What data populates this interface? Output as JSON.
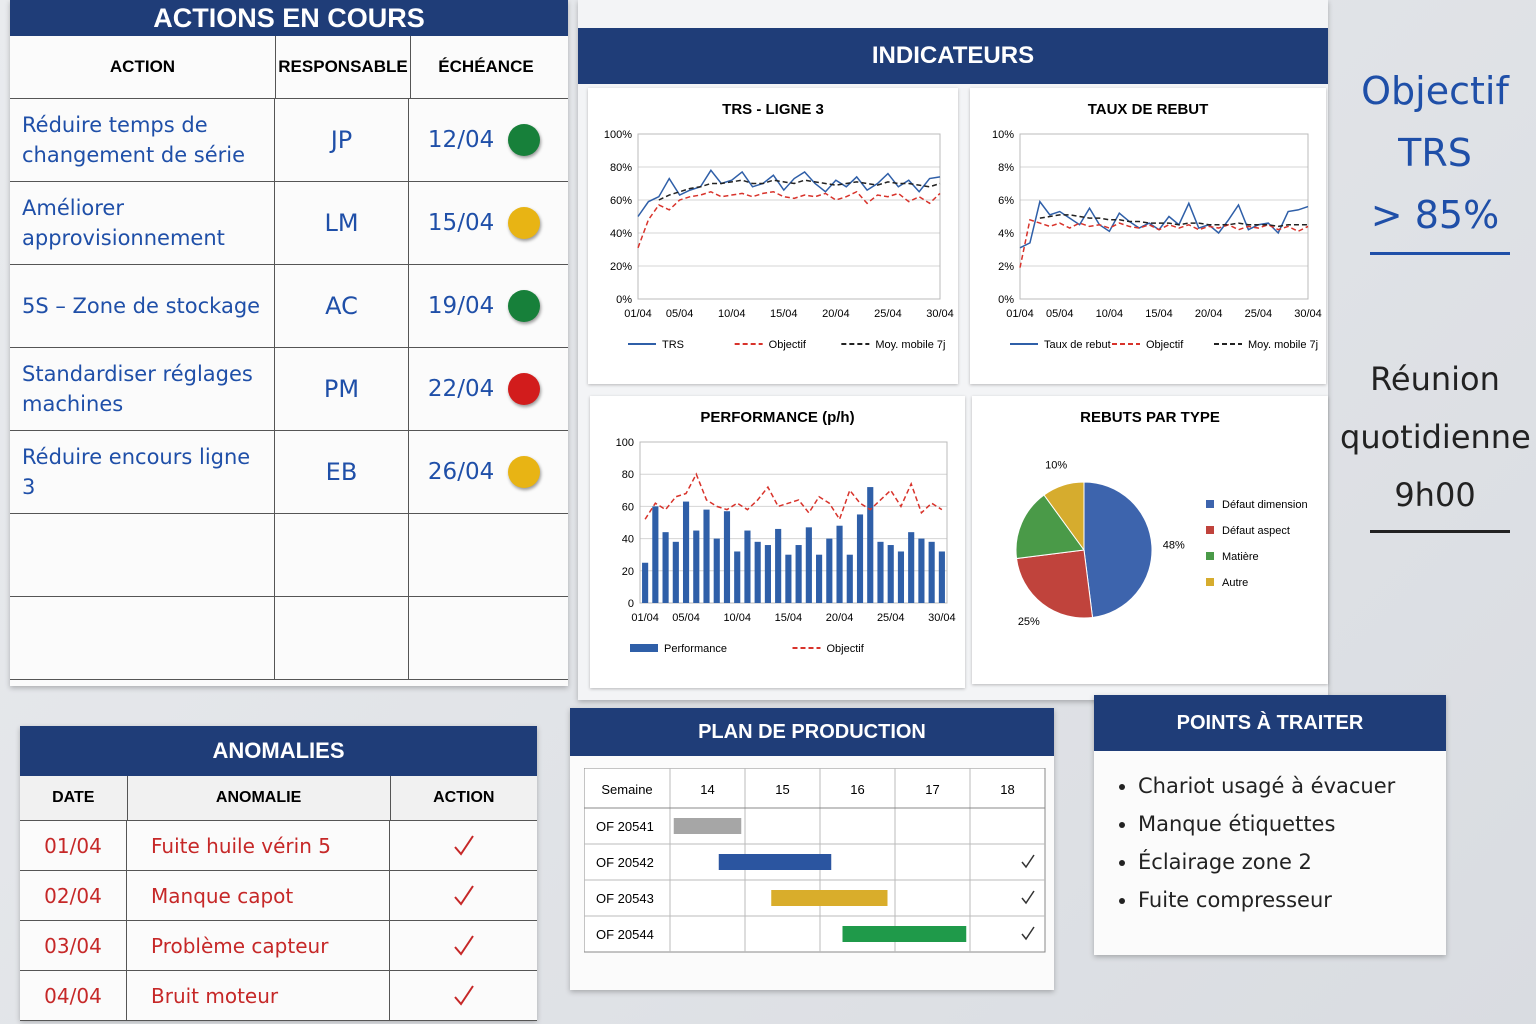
{
  "actions": {
    "title": "ACTIONS EN COURS",
    "headers": [
      "ACTION",
      "RESPONSABLE",
      "ÉCHÉANCE"
    ],
    "rows": [
      {
        "action": "Réduire temps de changement de série",
        "owner": "JP",
        "due": "12/04",
        "status": "#17803a"
      },
      {
        "action": "Améliorer approvisionnement",
        "owner": "LM",
        "due": "15/04",
        "status": "#e8b414"
      },
      {
        "action": "5S – Zone de stockage",
        "owner": "AC",
        "due": "19/04",
        "status": "#17803a"
      },
      {
        "action": "Standardiser réglages machines",
        "owner": "PM",
        "due": "22/04",
        "status": "#d21c1c"
      },
      {
        "action": "Réduire encours ligne 3",
        "owner": "EB",
        "due": "26/04",
        "status": "#e8b414"
      }
    ]
  },
  "indicators": {
    "title": "INDICATEURS"
  },
  "chart_data": [
    {
      "type": "line",
      "title": "TRS - LIGNE 3",
      "categories": [
        "01/04",
        null,
        null,
        null,
        "05/04",
        null,
        null,
        null,
        null,
        "10/04",
        null,
        null,
        null,
        null,
        "15/04",
        null,
        null,
        null,
        null,
        "20/04",
        null,
        null,
        null,
        null,
        "25/04",
        null,
        null,
        null,
        null,
        "30/04"
      ],
      "ylim": [
        0,
        100
      ],
      "yticks": [
        {
          "value": 0,
          "label": "0%"
        },
        {
          "value": 20,
          "label": "20%"
        },
        {
          "value": 40,
          "label": "40%"
        },
        {
          "value": 60,
          "label": "60%"
        },
        {
          "value": 80,
          "label": "80%"
        },
        {
          "value": 100,
          "label": "100%"
        }
      ],
      "grid": true,
      "series": [
        {
          "name": "TRS",
          "color": "#2f5fa8",
          "dash": false,
          "values": [
            50,
            59,
            62,
            73,
            63,
            66,
            68,
            78,
            70,
            72,
            77,
            68,
            70,
            75,
            66,
            73,
            77,
            70,
            65,
            72,
            68,
            74,
            66,
            70,
            76,
            68,
            72,
            65,
            73,
            74
          ]
        },
        {
          "name": "Objectif",
          "color": "#d8332b",
          "dash": true,
          "values": [
            31,
            48,
            57,
            54,
            60,
            62,
            63,
            65,
            62,
            63,
            64,
            62,
            64,
            65,
            62,
            61,
            63,
            62,
            64,
            60,
            62,
            65,
            58,
            63,
            62,
            64,
            59,
            62,
            58,
            64
          ]
        },
        {
          "name": "Moy. mobile 7j",
          "color": "#222222",
          "dash": true,
          "values": [
            null,
            null,
            60,
            63,
            65,
            67,
            68,
            70,
            70,
            71,
            72,
            70,
            70,
            72,
            71,
            70,
            72,
            71,
            70,
            69,
            70,
            71,
            70,
            69,
            71,
            70,
            70,
            69,
            68,
            70
          ]
        }
      ]
    },
    {
      "type": "line",
      "title": "TAUX DE REBUT",
      "categories": [
        "01/04",
        null,
        null,
        null,
        "05/04",
        null,
        null,
        null,
        null,
        "10/04",
        null,
        null,
        null,
        null,
        "15/04",
        null,
        null,
        null,
        null,
        "20/04",
        null,
        null,
        null,
        null,
        "25/04",
        null,
        null,
        null,
        null,
        "30/04"
      ],
      "ylim": [
        0,
        10
      ],
      "yticks": [
        {
          "value": 0,
          "label": "0%"
        },
        {
          "value": 2,
          "label": "2%"
        },
        {
          "value": 4,
          "label": "4%"
        },
        {
          "value": 6,
          "label": "6%"
        },
        {
          "value": 8,
          "label": "8%"
        },
        {
          "value": 10,
          "label": "10%"
        }
      ],
      "grid": true,
      "series": [
        {
          "name": "Taux de rebut",
          "color": "#2f5fa8",
          "dash": false,
          "values": [
            3.1,
            3.4,
            5.9,
            5.1,
            5.3,
            4.9,
            4.5,
            5.5,
            4.5,
            4.1,
            5.2,
            4.7,
            4.3,
            4.6,
            4.2,
            5.0,
            4.5,
            5.8,
            4.3,
            4.5,
            4.0,
            4.8,
            5.7,
            4.2,
            4.5,
            4.6,
            4.0,
            5.3,
            5.4,
            5.6
          ]
        },
        {
          "name": "Objectif",
          "color": "#d8332b",
          "dash": true,
          "values": [
            1.9,
            4.8,
            4.6,
            4.4,
            4.6,
            4.3,
            4.6,
            4.4,
            4.5,
            4.3,
            4.6,
            4.4,
            4.3,
            4.5,
            4.2,
            4.5,
            4.3,
            4.5,
            4.2,
            4.4,
            4.3,
            4.5,
            4.2,
            4.4,
            4.3,
            4.5,
            4.2,
            4.4,
            4.1,
            4.4
          ]
        },
        {
          "name": "Moy. mobile 7j",
          "color": "#222222",
          "dash": true,
          "values": [
            null,
            null,
            4.9,
            5.0,
            5.1,
            5.1,
            5.0,
            4.9,
            4.9,
            4.8,
            4.8,
            4.7,
            4.7,
            4.6,
            4.6,
            4.6,
            4.5,
            4.6,
            4.6,
            4.5,
            4.5,
            4.5,
            4.6,
            4.5,
            4.5,
            4.5,
            4.4,
            4.5,
            4.5,
            4.5
          ]
        }
      ]
    },
    {
      "type": "bar",
      "title": "PERFORMANCE (p/h)",
      "categories": [
        "01/04",
        null,
        null,
        null,
        "05/04",
        null,
        null,
        null,
        null,
        "10/04",
        null,
        null,
        null,
        null,
        "15/04",
        null,
        null,
        null,
        null,
        "20/04",
        null,
        null,
        null,
        null,
        "25/04",
        null,
        null,
        null,
        null,
        "30/04"
      ],
      "ylim": [
        0,
        100
      ],
      "yticks": [
        0,
        20,
        40,
        60,
        80,
        100
      ],
      "grid": true,
      "series": [
        {
          "name": "Performance",
          "color": "#2f5fa8",
          "kind": "bar",
          "values": [
            25,
            60,
            44,
            38,
            63,
            45,
            58,
            40,
            57,
            32,
            45,
            38,
            36,
            46,
            30,
            36,
            47,
            30,
            40,
            48,
            30,
            55,
            72,
            38,
            36,
            32,
            44,
            40,
            38,
            32
          ]
        },
        {
          "name": "Objectif",
          "color": "#d8332b",
          "kind": "line",
          "dash": true,
          "values": [
            52,
            62,
            58,
            66,
            68,
            80,
            64,
            60,
            58,
            62,
            58,
            64,
            72,
            60,
            62,
            64,
            56,
            66,
            62,
            52,
            70,
            62,
            58,
            64,
            70,
            60,
            74,
            56,
            62,
            58
          ]
        }
      ]
    },
    {
      "type": "pie",
      "title": "REBUTS PAR TYPE",
      "categories": [
        "Défaut dimension",
        "Défaut aspect",
        "Matière",
        "Autre"
      ],
      "values": [
        48,
        25,
        17,
        10
      ],
      "value_labels": [
        "48%",
        "25%",
        null,
        "10%"
      ],
      "colors": [
        "#3d64ad",
        "#c0433c",
        "#4a9a48",
        "#d6ac2e"
      ]
    }
  ],
  "anomalies": {
    "title": "ANOMALIES",
    "headers": [
      "DATE",
      "ANOMALIE",
      "ACTION"
    ],
    "rows": [
      {
        "date": "01/04",
        "text": "Fuite huile vérin 5",
        "done": true
      },
      {
        "date": "02/04",
        "text": "Manque capot",
        "done": true
      },
      {
        "date": "03/04",
        "text": "Problème capteur",
        "done": true
      },
      {
        "date": "04/04",
        "text": "Bruit moteur",
        "done": true
      }
    ]
  },
  "plan": {
    "title": "PLAN DE PRODUCTION",
    "header": "Semaine",
    "weeks": [
      14,
      15,
      16,
      17,
      18
    ],
    "rows": [
      {
        "of": "OF 20541",
        "start": 14.05,
        "end": 14.95,
        "color": "#a6a6a6",
        "done": false
      },
      {
        "of": "OF 20542",
        "start": 14.65,
        "end": 16.15,
        "color": "#2b55a0",
        "done": true
      },
      {
        "of": "OF 20543",
        "start": 15.35,
        "end": 16.9,
        "color": "#d9ad2b",
        "done": true
      },
      {
        "of": "OF 20544",
        "start": 16.3,
        "end": 17.95,
        "color": "#1f9a4a",
        "done": true
      }
    ]
  },
  "points": {
    "title": "POINTS À TRAITER",
    "items": [
      "Chariot usagé à évacuer",
      "Manque étiquettes",
      "Éclairage zone 2",
      "Fuite compresseur"
    ]
  },
  "notes": [
    {
      "lines": [
        "Objectif",
        "TRS",
        "> 85%"
      ],
      "color": "#1f4fa8"
    },
    {
      "lines": [
        "Réunion",
        "quotidienne",
        "9h00"
      ],
      "color": "#222222"
    }
  ]
}
